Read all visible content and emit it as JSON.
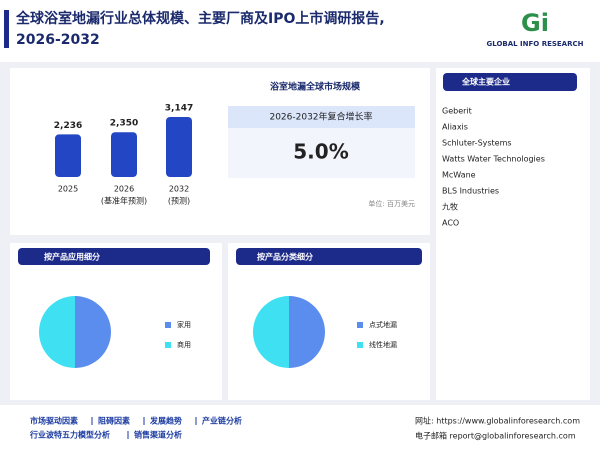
{
  "header": {
    "title_line1": "全球浴室地漏行业总体规模、主要厂商及IPO上市调研报告,",
    "title_line2": "2026-2032",
    "logo_mark": "Gi",
    "logo_text": "GLOBAL INFO RESEARCH"
  },
  "chart_data": [
    {
      "type": "bar",
      "categories": [
        "2025",
        "2026",
        "2032"
      ],
      "category_notes": [
        null,
        "(基准年预测)",
        "(预测)"
      ],
      "values": [
        2236,
        2350,
        3147
      ],
      "value_labels": [
        "2,236",
        "2,350",
        "3,147"
      ],
      "color": "#2346c4"
    },
    {
      "type": "pie",
      "title": "按产品应用细分",
      "series": [
        {
          "name": "家用",
          "color": "#5b8def",
          "values": [
            50
          ]
        },
        {
          "name": "商用",
          "color": "#3fe0f2",
          "values": [
            50
          ]
        }
      ]
    },
    {
      "type": "pie",
      "title": "按产品分类细分",
      "series": [
        {
          "name": "点式地漏",
          "color": "#5b8def",
          "values": [
            50
          ]
        },
        {
          "name": "线性地漏",
          "color": "#3fe0f2",
          "values": [
            50
          ]
        }
      ]
    }
  ],
  "kpi": {
    "title": "浴室地漏全球市场规模",
    "label": "2026-2032年复合增长率",
    "value": "5.0%",
    "unit": "单位: 百万美元"
  },
  "companies": {
    "title": "全球主要企业",
    "items": [
      "Geberit",
      "Aliaxis",
      "Schluter-Systems",
      "Watts Water Technologies",
      "McWane",
      "BLS Industries",
      "九牧",
      "ACO"
    ]
  },
  "footer": {
    "links": [
      "市场驱动因素",
      "阻碍因素",
      "发展趋势",
      "产业链分析",
      "行业波特五力模型分析",
      "销售渠道分析"
    ],
    "website": "网址: https://www.globalinforesearch.com",
    "email": "电子邮箱 report@globalinforesearch.com"
  }
}
